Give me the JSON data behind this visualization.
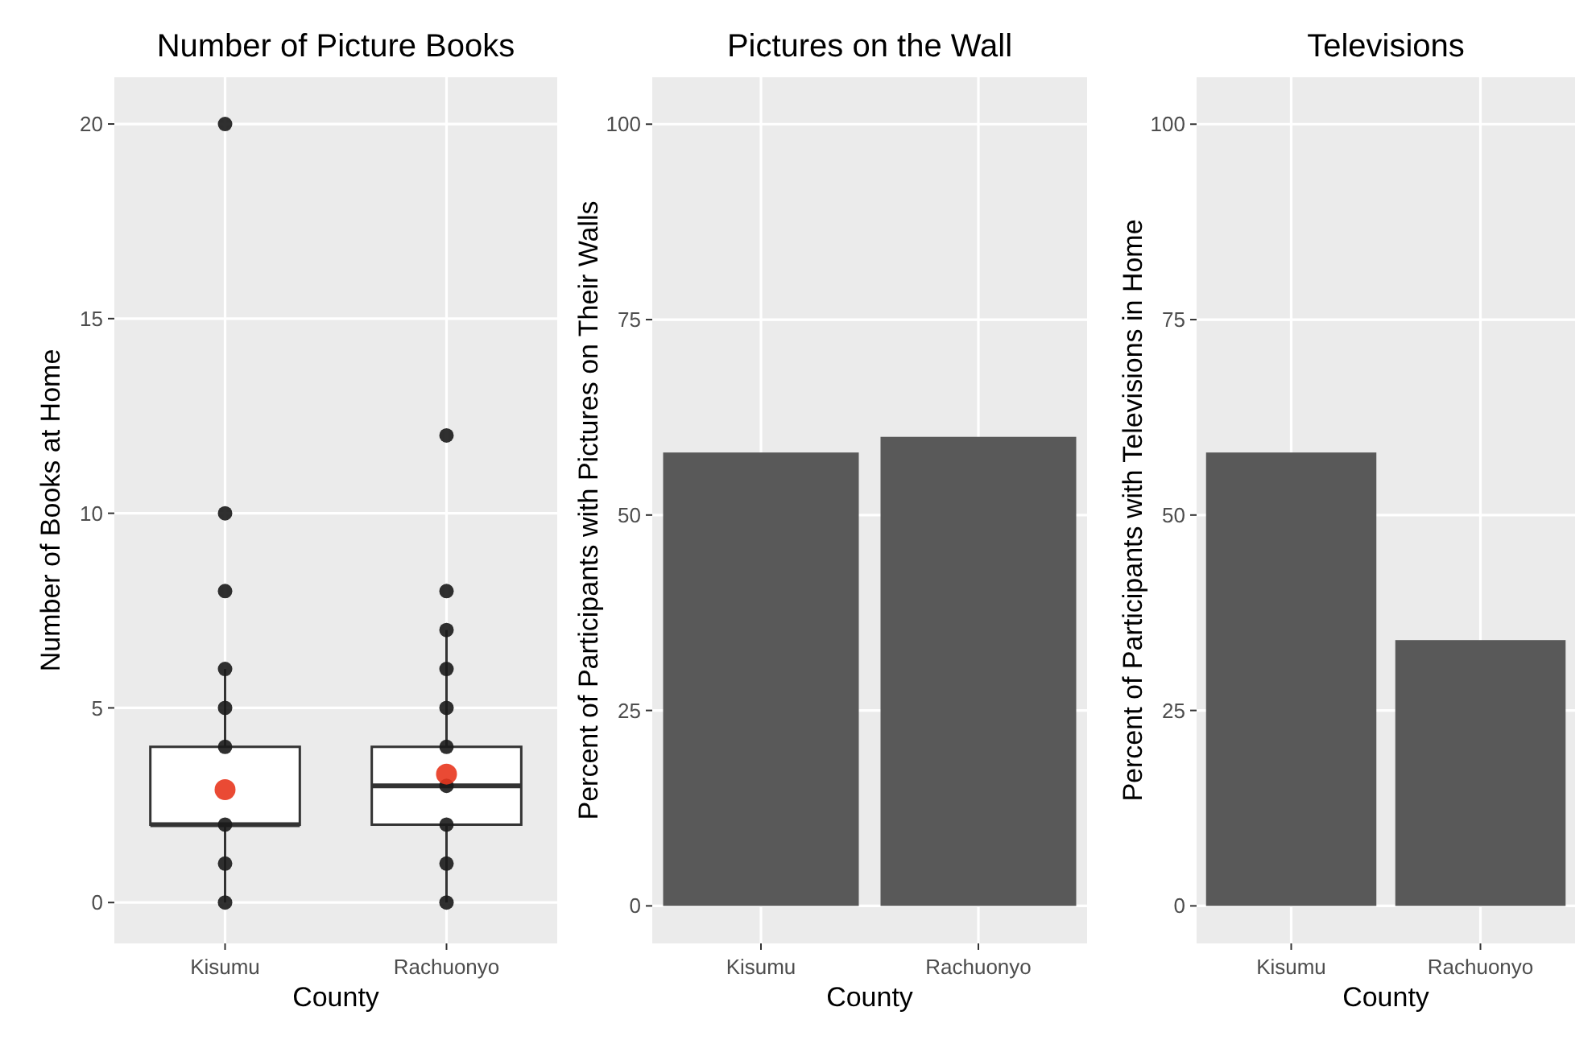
{
  "chart_data": [
    {
      "type": "box",
      "title": "Number of Picture Books",
      "xlabel": "County",
      "ylabel": "Number of Books at Home",
      "categories": [
        "Kisumu",
        "Rachuonyo"
      ],
      "ylim": [
        -1.05,
        21.2
      ],
      "yticks": [
        0,
        5,
        10,
        15,
        20
      ],
      "grid": true,
      "boxes": [
        {
          "low": 0,
          "q1": 2,
          "median": 2,
          "q3": 4,
          "high": 6
        },
        {
          "low": 0,
          "q1": 2,
          "median": 3,
          "q3": 4,
          "high": 7
        }
      ],
      "series": [
        {
          "type": "scatter",
          "color": "#1a1a1a",
          "x": [
            "Kisumu",
            "Kisumu",
            "Kisumu",
            "Kisumu",
            "Kisumu",
            "Kisumu",
            "Kisumu",
            "Kisumu",
            "Kisumu",
            "Rachuonyo",
            "Rachuonyo",
            "Rachuonyo",
            "Rachuonyo",
            "Rachuonyo",
            "Rachuonyo",
            "Rachuonyo",
            "Rachuonyo",
            "Rachuonyo",
            "Rachuonyo"
          ],
          "values": [
            20,
            10,
            8,
            6,
            5,
            4,
            2,
            1,
            0,
            12,
            8,
            7,
            6,
            5,
            4,
            3,
            2,
            1,
            0
          ]
        },
        {
          "type": "scatter",
          "color": "#e8361e",
          "x": [
            "Kisumu",
            "Rachuonyo"
          ],
          "values": [
            2.9,
            3.3
          ]
        }
      ]
    },
    {
      "type": "bar",
      "title": "Pictures on the Wall",
      "xlabel": "County",
      "ylabel": "Percent of Participants with Pictures on Their Walls",
      "categories": [
        "Kisumu",
        "Rachuonyo"
      ],
      "values": [
        58,
        60
      ],
      "color": "#595959",
      "ylim": [
        -4.8,
        106
      ],
      "yticks": [
        0,
        25,
        50,
        75,
        100
      ],
      "grid": true
    },
    {
      "type": "bar",
      "title": "Televisions",
      "xlabel": "County",
      "ylabel": "Percent of Participants with Televisions in Home",
      "categories": [
        "Kisumu",
        "Rachuonyo"
      ],
      "values": [
        58,
        34
      ],
      "color": "#595959",
      "ylim": [
        -4.8,
        106
      ],
      "yticks": [
        0,
        25,
        50,
        75,
        100
      ],
      "grid": true
    }
  ]
}
